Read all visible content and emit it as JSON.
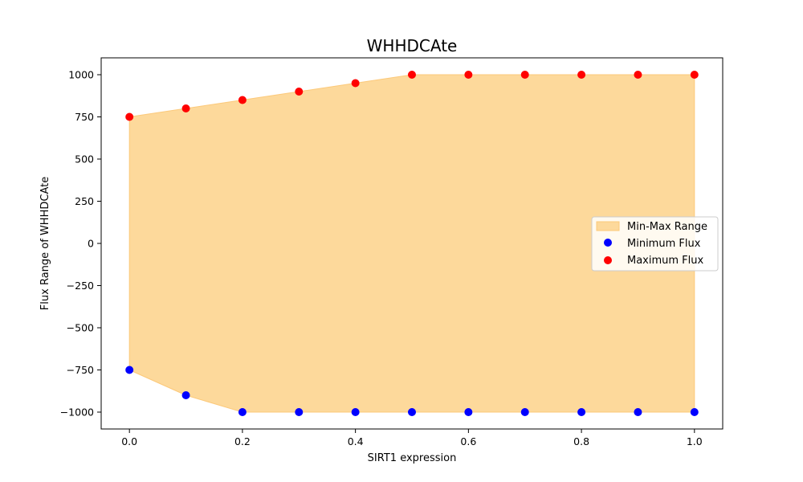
{
  "chart_data": {
    "type": "area",
    "title": "WHHDCAte",
    "xlabel": "SIRT1 expression",
    "ylabel": "Flux Range of WHHDCAte",
    "xlim": [
      -0.05,
      1.05
    ],
    "ylim": [
      -1100,
      1100
    ],
    "x": [
      0.0,
      0.1,
      0.2,
      0.3,
      0.4,
      0.5,
      0.6,
      0.7,
      0.8,
      0.9,
      1.0
    ],
    "xticks": [
      "0.0",
      "0.2",
      "0.4",
      "0.6",
      "0.8",
      "1.0"
    ],
    "xtick_values": [
      0.0,
      0.2,
      0.4,
      0.6,
      0.8,
      1.0
    ],
    "yticks": [
      "−1000",
      "−750",
      "−500",
      "−250",
      "0",
      "250",
      "500",
      "750",
      "1000"
    ],
    "ytick_values": [
      -1000,
      -750,
      -500,
      -250,
      0,
      250,
      500,
      750,
      1000
    ],
    "grid": false,
    "legend_position": "center-right",
    "series": [
      {
        "name": "Min-Max Range",
        "kind": "fill_between",
        "color": "#fdd99b",
        "edge_color": "#fcc97a"
      },
      {
        "name": "Minimum Flux",
        "kind": "scatter",
        "color": "#0000ff",
        "values": [
          -750,
          -900,
          -1000,
          -1000,
          -1000,
          -1000,
          -1000,
          -1000,
          -1000,
          -1000,
          -1000
        ]
      },
      {
        "name": "Maximum Flux",
        "kind": "scatter",
        "color": "#ff0000",
        "values": [
          750,
          800,
          850,
          900,
          950,
          1000,
          1000,
          1000,
          1000,
          1000,
          1000
        ]
      }
    ]
  }
}
